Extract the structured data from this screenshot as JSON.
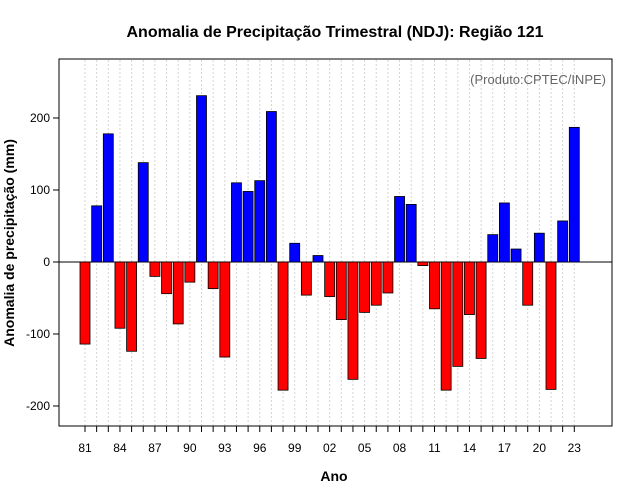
{
  "chart_data": {
    "type": "bar",
    "title": "Anomalia de Precipitação Trimestral (NDJ): Região 121",
    "credit": "(Produto:CPTEC/INPE)",
    "xlabel": "Ano",
    "ylabel": "Anomalia de precipitação (mm)",
    "ylim": [
      -230,
      285
    ],
    "yticks": [
      -200,
      -100,
      0,
      100,
      200
    ],
    "positive_color": "#0000ff",
    "negative_color": "#ff0000",
    "grid_color": "#d3d3d3",
    "years": [
      "81",
      "82",
      "83",
      "84",
      "85",
      "86",
      "87",
      "88",
      "89",
      "90",
      "91",
      "92",
      "93",
      "94",
      "95",
      "96",
      "97",
      "98",
      "99",
      "00",
      "01",
      "02",
      "03",
      "04",
      "05",
      "06",
      "07",
      "08",
      "09",
      "10",
      "11",
      "12",
      "13",
      "14",
      "15",
      "16",
      "17",
      "18",
      "19",
      "20",
      "21",
      "22",
      "23"
    ],
    "tick_labels": [
      "81",
      "84",
      "87",
      "90",
      "93",
      "96",
      "99",
      "02",
      "05",
      "08",
      "11",
      "14",
      "17",
      "20",
      "23"
    ],
    "values": [
      -114,
      78,
      178,
      -92,
      -124,
      138,
      -20,
      -44,
      -86,
      -28,
      231,
      -37,
      -132,
      110,
      98,
      113,
      209,
      -178,
      26,
      -46,
      9,
      -48,
      -80,
      -163,
      -70,
      -60,
      -43,
      91,
      80,
      -5,
      -65,
      -178,
      -145,
      -73,
      -134,
      38,
      82,
      18,
      -60,
      40,
      -177,
      57,
      187
    ]
  }
}
